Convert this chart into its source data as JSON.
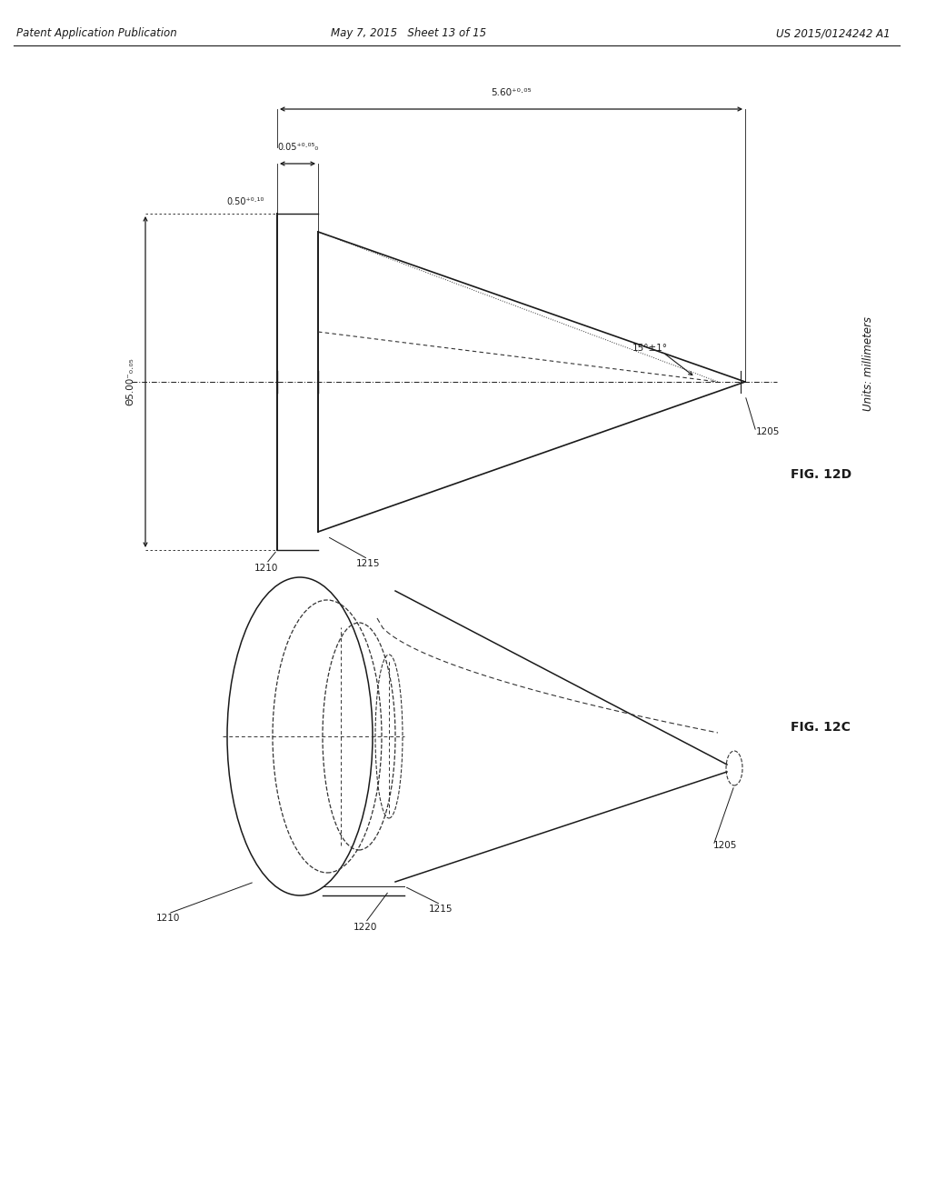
{
  "header_left": "Patent Application Publication",
  "header_mid": "May 7, 2015   Sheet 13 of 15",
  "header_right": "US 2015/0124242 A1",
  "fig_12d_label": "FIG. 12D",
  "fig_12c_label": "FIG. 12C",
  "units_label": "Units: millimeters",
  "dim_diameter": "Θ5.00⁻₀.₀₅",
  "dim_thickness": "0.05⁺⁰·⁰⁵₀",
  "dim_lens_thick": "0.50⁺⁰·¹⁰",
  "dim_fl": "5.60⁺⁰·⁰⁵",
  "dim_angle": "15°±1°",
  "label_1205": "1205",
  "label_1210": "1210",
  "label_1215": "1215",
  "label_1220": "1220",
  "bg_color": "#ffffff",
  "line_color": "#1a1a1a",
  "dash_color": "#333333"
}
